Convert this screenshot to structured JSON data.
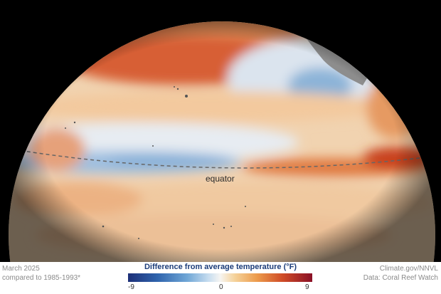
{
  "map": {
    "equator_label": "equator",
    "icons": [
      "globe-ocean-anomaly",
      "landmass-north-america",
      "equator-dashed-line",
      "pacific-islands"
    ]
  },
  "footer": {
    "date_line": "March 2025",
    "baseline_line": "compared to 1985-1993*",
    "credit_line": "Climate.gov/NNVL",
    "source_line": "Data: Coral Reef Watch"
  },
  "legend": {
    "title": "Difference from average temperature (°F)",
    "min": "-9",
    "mid": "0",
    "max": "9",
    "colors": [
      "#1d2f78",
      "#2f64ad",
      "#6fa6d6",
      "#c9def0",
      "#f6f5f2",
      "#f5d29a",
      "#ec9b4c",
      "#cf4b27",
      "#8a1027"
    ]
  }
}
